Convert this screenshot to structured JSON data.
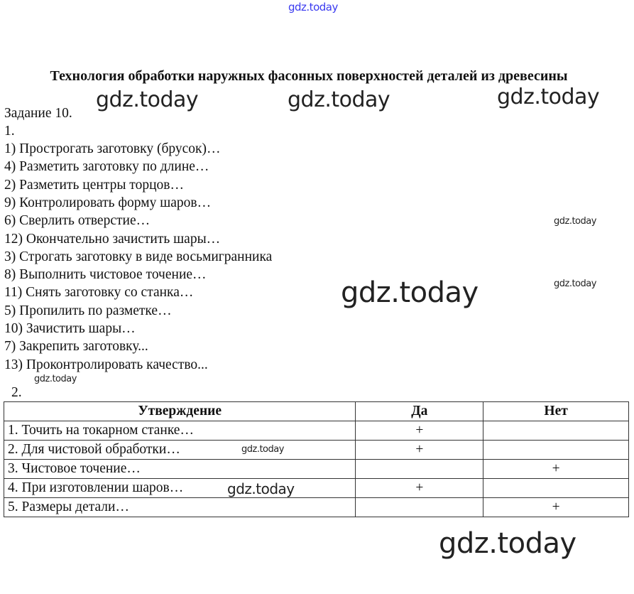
{
  "watermark": "gdz.today",
  "title": "Технология обработки наружных фасонных поверхностей деталей из древесины",
  "task": "Задание 10.",
  "part1": "1.",
  "steps": [
    "1) Прострогать заготовку (брусок)…",
    "4) Разметить заготовку по длине…",
    "2) Разметить центры торцов…",
    "9) Контролировать форму шаров…",
    "6) Сверлить отверстие…",
    "12) Окончательно зачистить шары…",
    "3) Строгать заготовку в виде восьмигранника",
    "8) Выполнить чистовое точение…",
    "11) Снять заготовку со станка…",
    "5) Пропилить по разметке…",
    "10) Зачистить шары…",
    "7) Закрепить заготовку...",
    "13) Проконтролировать качество..."
  ],
  "part2": "2.",
  "table": {
    "headers": [
      "Утверждение",
      "Да",
      "Нет"
    ],
    "rows": [
      [
        "1. Точить на токарном станке…",
        "+",
        ""
      ],
      [
        "2. Для чистовой обработки…",
        "+",
        ""
      ],
      [
        "3. Чистовое точение…",
        "",
        "+"
      ],
      [
        "4. При изготовлении шаров…",
        "+",
        ""
      ],
      [
        "5. Размеры детали…",
        "",
        "+"
      ]
    ]
  }
}
